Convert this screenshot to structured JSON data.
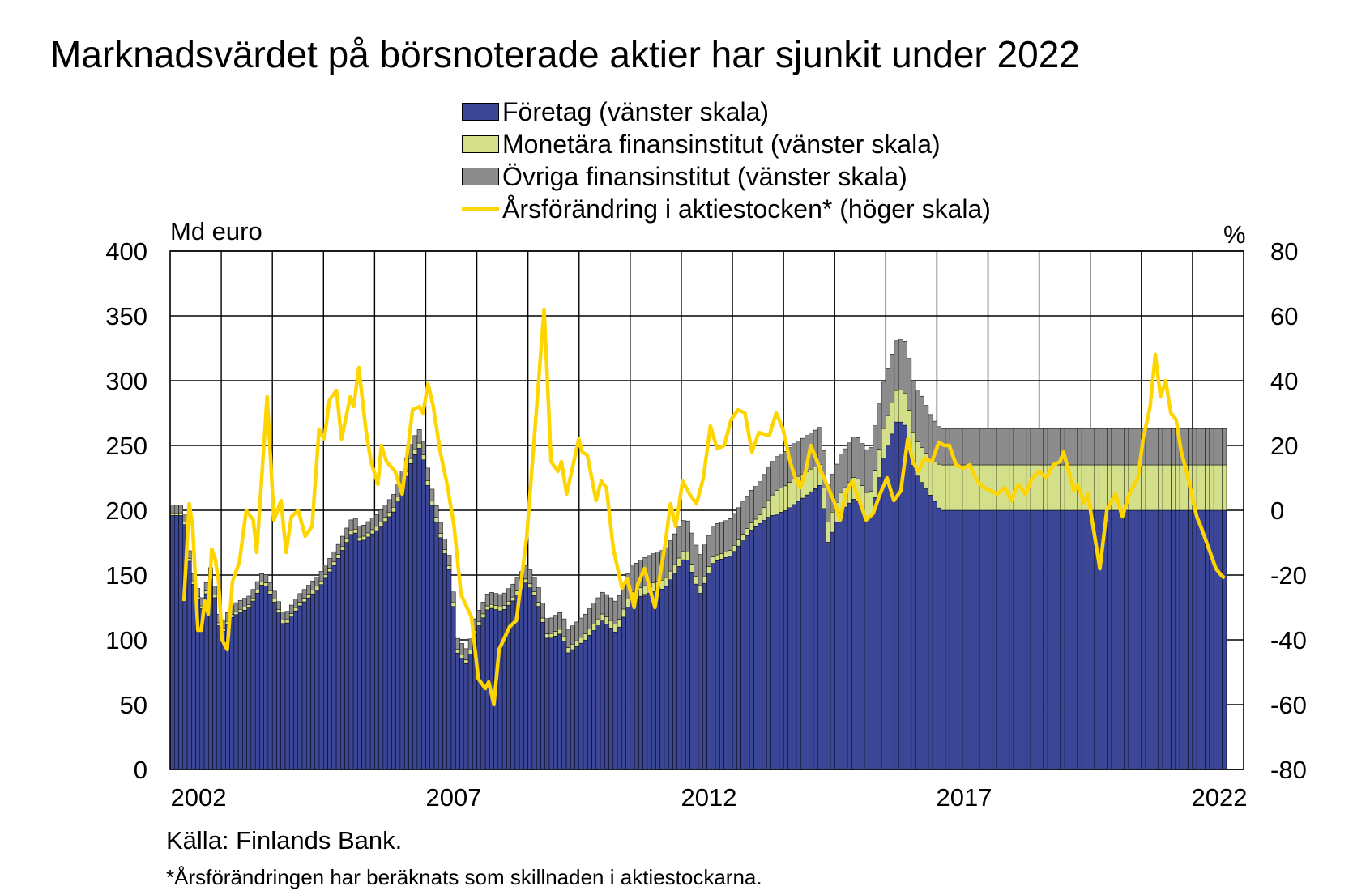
{
  "chart_data": {
    "type": "bar",
    "title": "Marknadsvärdet på börsnoterade aktier har sjunkit under 2022",
    "left_axis_label": "Md euro",
    "right_axis_label": "%",
    "ylim_left": [
      0,
      400
    ],
    "ylim_right": [
      -80,
      80
    ],
    "y_ticks_left": [
      "400",
      "350",
      "300",
      "250",
      "200",
      "150",
      "100",
      "50",
      "0"
    ],
    "y_ticks_right": [
      "80",
      "60",
      "40",
      "20",
      "0",
      "-20",
      "-40",
      "-60",
      "-80"
    ],
    "x_ticks": [
      "2002",
      "2007",
      "2012",
      "2017",
      "2022"
    ],
    "x_range": [
      "2001-12",
      "2022-12"
    ],
    "grid": true,
    "legend_position": "top-center",
    "source": "Källa: Finlands Bank.",
    "footnote": "*Årsförändringen har beräknats som skillnaden i aktiestockarna.",
    "series": [
      {
        "name": "Företag (vänster skala)",
        "kind": "stacked-bar",
        "axis": "left",
        "color": "#3b4696"
      },
      {
        "name": "Monetära finansinstitut (vänster skala)",
        "kind": "stacked-bar",
        "axis": "left",
        "color": "#d4df8a"
      },
      {
        "name": "Övriga finansinstitut (vänster skala)",
        "kind": "stacked-bar",
        "axis": "left",
        "color": "#8c8c8c"
      },
      {
        "name": "Årsförändring i aktiestocken* (höger skala)",
        "kind": "line",
        "axis": "right",
        "color": "#ffd500"
      }
    ],
    "keypoints": {
      "companies": [
        [
          2001.9,
          196
        ],
        [
          2002.1,
          150
        ],
        [
          2002.4,
          122
        ],
        [
          2002.7,
          150
        ],
        [
          2002.9,
          112
        ],
        [
          2003.0,
          105
        ],
        [
          2003.3,
          118
        ],
        [
          2003.8,
          125
        ],
        [
          2004.2,
          145
        ],
        [
          2004.5,
          130
        ],
        [
          2004.8,
          110
        ],
        [
          2005.2,
          125
        ],
        [
          2005.8,
          140
        ],
        [
          2006.3,
          160
        ],
        [
          2006.8,
          185
        ],
        [
          2007.0,
          175
        ],
        [
          2007.5,
          185
        ],
        [
          2008.0,
          200
        ],
        [
          2008.5,
          240
        ],
        [
          2008.75,
          250
        ],
        [
          2009.0,
          210
        ],
        [
          2009.3,
          180
        ],
        [
          2009.6,
          150
        ],
        [
          2009.8,
          90
        ],
        [
          2010.1,
          80
        ],
        [
          2010.3,
          105
        ],
        [
          2010.7,
          125
        ],
        [
          2011.1,
          122
        ],
        [
          2011.4,
          130
        ],
        [
          2011.8,
          145
        ],
        [
          2012.1,
          130
        ],
        [
          2012.4,
          100
        ],
        [
          2012.8,
          105
        ],
        [
          2013.0,
          90
        ],
        [
          2013.5,
          100
        ],
        [
          2014.0,
          115
        ],
        [
          2014.4,
          105
        ],
        [
          2014.8,
          130
        ],
        [
          2015.2,
          135
        ],
        [
          2015.8,
          140
        ],
        [
          2016.4,
          165
        ],
        [
          2016.8,
          135
        ],
        [
          2017.2,
          160
        ],
        [
          2017.7,
          165
        ],
        [
          2018.3,
          185
        ],
        [
          2018.8,
          195
        ],
        [
          2019.3,
          200
        ],
        [
          2019.8,
          210
        ],
        [
          2020.3,
          220
        ],
        [
          2020.5,
          175
        ],
        [
          2020.9,
          200
        ],
        [
          2021.3,
          210
        ],
        [
          2021.7,
          190
        ],
        [
          2022.1,
          240
        ],
        [
          2022.5,
          270
        ],
        [
          2022.75,
          265
        ],
        [
          2023.0,
          230
        ],
        [
          2023.5,
          210
        ],
        [
          2023.75,
          200
        ]
      ],
      "mfi": [
        [
          2001.9,
          2
        ],
        [
          2007.0,
          3
        ],
        [
          2008.7,
          4
        ],
        [
          2009.5,
          3
        ],
        [
          2010.5,
          3
        ],
        [
          2012.0,
          3
        ],
        [
          2013.0,
          4
        ],
        [
          2014.4,
          6
        ],
        [
          2015.5,
          7
        ],
        [
          2016.8,
          6
        ],
        [
          2017.5,
          4
        ],
        [
          2018.5,
          6
        ],
        [
          2019.0,
          18
        ],
        [
          2019.5,
          20
        ],
        [
          2020.3,
          16
        ],
        [
          2021.0,
          15
        ],
        [
          2021.7,
          20
        ],
        [
          2022.3,
          24
        ],
        [
          2022.8,
          25
        ],
        [
          2023.5,
          28
        ],
        [
          2023.75,
          35
        ]
      ],
      "ofi": [
        [
          2001.9,
          6
        ],
        [
          2003.5,
          7
        ],
        [
          2004.5,
          6
        ],
        [
          2006.5,
          8
        ],
        [
          2007.5,
          9
        ],
        [
          2008.5,
          11
        ],
        [
          2009.5,
          8
        ],
        [
          2010.5,
          9
        ],
        [
          2011.5,
          10
        ],
        [
          2012.5,
          12
        ],
        [
          2013.4,
          15
        ],
        [
          2014.4,
          18
        ],
        [
          2015.3,
          22
        ],
        [
          2016.2,
          24
        ],
        [
          2017.2,
          24
        ],
        [
          2018.2,
          25
        ],
        [
          2019.0,
          26
        ],
        [
          2020.0,
          28
        ],
        [
          2021.0,
          30
        ],
        [
          2022.0,
          35
        ],
        [
          2022.7,
          40
        ],
        [
          2023.2,
          40
        ],
        [
          2023.75,
          28
        ]
      ],
      "annual_change": [
        [
          2001.9,
          -28
        ],
        [
          2002.05,
          2
        ],
        [
          2002.15,
          -5
        ],
        [
          2002.3,
          -37
        ],
        [
          2002.4,
          -37
        ],
        [
          2002.5,
          -28
        ],
        [
          2002.6,
          -32
        ],
        [
          2002.7,
          -12
        ],
        [
          2002.8,
          -15
        ],
        [
          2002.9,
          -22
        ],
        [
          2003.0,
          -40
        ],
        [
          2003.15,
          -43
        ],
        [
          2003.3,
          -22
        ],
        [
          2003.5,
          -16
        ],
        [
          2003.7,
          0
        ],
        [
          2003.9,
          -3
        ],
        [
          2004.0,
          -13
        ],
        [
          2004.3,
          35
        ],
        [
          2004.5,
          -3
        ],
        [
          2004.7,
          3
        ],
        [
          2004.85,
          -13
        ],
        [
          2005.0,
          -2
        ],
        [
          2005.2,
          0
        ],
        [
          2005.4,
          -8
        ],
        [
          2005.6,
          -5
        ],
        [
          2005.8,
          25
        ],
        [
          2005.95,
          22
        ],
        [
          2006.1,
          34
        ],
        [
          2006.3,
          37
        ],
        [
          2006.45,
          22
        ],
        [
          2006.7,
          35
        ],
        [
          2006.8,
          32
        ],
        [
          2006.95,
          44
        ],
        [
          2007.15,
          25
        ],
        [
          2007.3,
          15
        ],
        [
          2007.5,
          8
        ],
        [
          2007.6,
          20
        ],
        [
          2007.75,
          15
        ],
        [
          2008.0,
          12
        ],
        [
          2008.2,
          5
        ],
        [
          2008.5,
          31
        ],
        [
          2008.7,
          32
        ],
        [
          2008.8,
          30
        ],
        [
          2008.95,
          39
        ],
        [
          2009.1,
          32
        ],
        [
          2009.3,
          18
        ],
        [
          2009.5,
          8
        ],
        [
          2009.7,
          -5
        ],
        [
          2009.9,
          -26
        ],
        [
          2010.2,
          -33
        ],
        [
          2010.4,
          -52
        ],
        [
          2010.6,
          -55
        ],
        [
          2010.7,
          -53
        ],
        [
          2010.85,
          -60
        ],
        [
          2011.0,
          -43
        ],
        [
          2011.3,
          -36
        ],
        [
          2011.5,
          -34
        ],
        [
          2011.8,
          -8
        ],
        [
          2012.3,
          62
        ],
        [
          2012.5,
          15
        ],
        [
          2012.7,
          12
        ],
        [
          2012.8,
          15
        ],
        [
          2012.95,
          5
        ],
        [
          2013.3,
          22
        ],
        [
          2013.4,
          18
        ],
        [
          2013.55,
          17
        ],
        [
          2013.8,
          3
        ],
        [
          2013.95,
          9
        ],
        [
          2014.1,
          7
        ],
        [
          2014.3,
          -12
        ],
        [
          2014.55,
          -24
        ],
        [
          2014.7,
          -21
        ],
        [
          2014.9,
          -30
        ],
        [
          2015.0,
          -23
        ],
        [
          2015.2,
          -18
        ],
        [
          2015.5,
          -30
        ],
        [
          2015.8,
          -10
        ],
        [
          2015.95,
          2
        ],
        [
          2016.1,
          -5
        ],
        [
          2016.3,
          9
        ],
        [
          2016.5,
          5
        ],
        [
          2016.7,
          2
        ],
        [
          2016.9,
          10
        ],
        [
          2017.1,
          26
        ],
        [
          2017.3,
          19
        ],
        [
          2017.5,
          20
        ],
        [
          2017.7,
          28
        ],
        [
          2017.9,
          31
        ],
        [
          2018.1,
          30
        ],
        [
          2018.3,
          18
        ],
        [
          2018.5,
          24
        ],
        [
          2018.8,
          23
        ],
        [
          2019.0,
          30
        ],
        [
          2019.2,
          25
        ],
        [
          2019.4,
          15
        ],
        [
          2019.55,
          10
        ],
        [
          2019.7,
          7
        ],
        [
          2019.85,
          12
        ],
        [
          2020.0,
          20
        ],
        [
          2020.3,
          12
        ],
        [
          2020.5,
          7
        ],
        [
          2020.7,
          2
        ],
        [
          2020.85,
          -3
        ],
        [
          2021.0,
          5
        ],
        [
          2021.2,
          9
        ],
        [
          2021.4,
          3
        ],
        [
          2021.6,
          -3
        ],
        [
          2021.8,
          -1
        ],
        [
          2022.0,
          5
        ],
        [
          2022.2,
          10
        ],
        [
          2022.4,
          3
        ],
        [
          2022.6,
          6
        ],
        [
          2022.8,
          22
        ],
        [
          2022.95,
          15
        ],
        [
          2023.1,
          12
        ],
        [
          2023.3,
          16
        ],
        [
          2023.5,
          15
        ],
        [
          2023.7,
          21
        ],
        [
          2023.85,
          20
        ],
        [
          2024.0,
          20
        ],
        [
          2024.2,
          14
        ],
        [
          2024.4,
          13
        ],
        [
          2024.6,
          14
        ],
        [
          2024.8,
          9
        ],
        [
          2025.0,
          7
        ],
        [
          2025.2,
          6
        ],
        [
          2025.4,
          5
        ],
        [
          2025.6,
          7
        ],
        [
          2025.8,
          3
        ],
        [
          2025.9,
          6
        ],
        [
          2026.0,
          8
        ],
        [
          2026.2,
          5
        ],
        [
          2026.4,
          10
        ],
        [
          2026.6,
          12
        ],
        [
          2026.8,
          10
        ],
        [
          2027.0,
          14
        ],
        [
          2027.2,
          15
        ],
        [
          2027.3,
          18
        ],
        [
          2027.5,
          10
        ],
        [
          2027.6,
          6
        ],
        [
          2027.7,
          8
        ],
        [
          2027.9,
          2
        ],
        [
          2028.0,
          5
        ],
        [
          2028.2,
          -8
        ],
        [
          2028.35,
          -18
        ],
        [
          2028.55,
          0
        ],
        [
          2028.8,
          5
        ],
        [
          2029.0,
          -2
        ],
        [
          2029.2,
          5
        ],
        [
          2029.45,
          10
        ],
        [
          2029.6,
          22
        ],
        [
          2029.8,
          32
        ],
        [
          2029.95,
          48
        ],
        [
          2030.1,
          35
        ],
        [
          2030.25,
          40
        ],
        [
          2030.4,
          30
        ],
        [
          2030.55,
          28
        ],
        [
          2030.7,
          18
        ],
        [
          2030.85,
          12
        ],
        [
          2031.0,
          5
        ],
        [
          2031.15,
          -2
        ],
        [
          2031.3,
          -6
        ],
        [
          2031.5,
          -12
        ],
        [
          2031.7,
          -18
        ],
        [
          2031.85,
          -20
        ],
        [
          2031.95,
          -21
        ]
      ]
    }
  }
}
